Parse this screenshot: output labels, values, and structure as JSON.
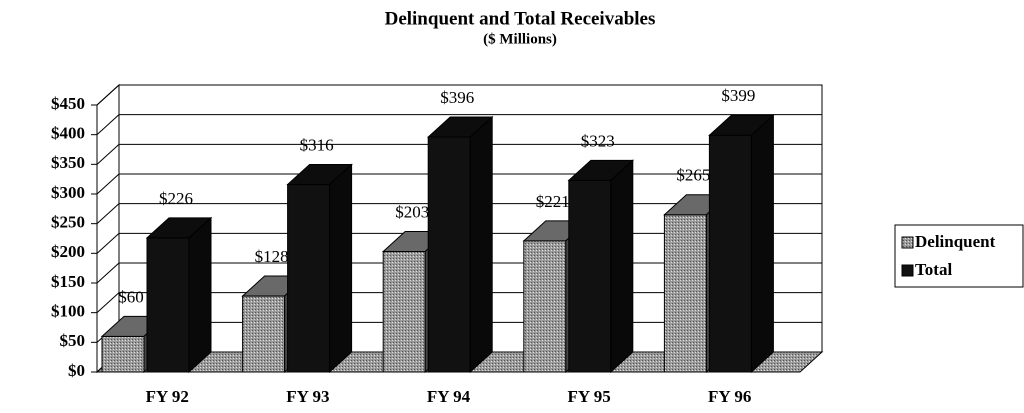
{
  "chart_data": {
    "type": "bar3d",
    "title": "Delinquent and Total Receivables",
    "subtitle": "($ Millions)",
    "categories": [
      "FY 92",
      "FY 93",
      "FY 94",
      "FY 95",
      "FY 96"
    ],
    "series": [
      {
        "name": "Delinquent",
        "color": "#8c8c8c",
        "values": [
          60,
          128,
          203,
          221,
          265
        ],
        "value_labels": [
          "$60",
          "$128",
          "$203",
          "$221",
          "$265"
        ]
      },
      {
        "name": "Total",
        "color": "#111111",
        "values": [
          226,
          316,
          396,
          323,
          399
        ],
        "value_labels": [
          "$226",
          "$316",
          "$396",
          "$323",
          "$399"
        ]
      }
    ],
    "ylim": [
      0,
      450
    ],
    "yticks": [
      {
        "value": 0,
        "label": "$0"
      },
      {
        "value": 50,
        "label": "$50"
      },
      {
        "value": 100,
        "label": "$100"
      },
      {
        "value": 150,
        "label": "$150"
      },
      {
        "value": 200,
        "label": "$200"
      },
      {
        "value": 250,
        "label": "$250"
      },
      {
        "value": 300,
        "label": "$300"
      },
      {
        "value": 350,
        "label": "$350"
      },
      {
        "value": 400,
        "label": "$400"
      },
      {
        "value": 450,
        "label": "$450"
      }
    ],
    "grid": true,
    "legend": "right"
  }
}
